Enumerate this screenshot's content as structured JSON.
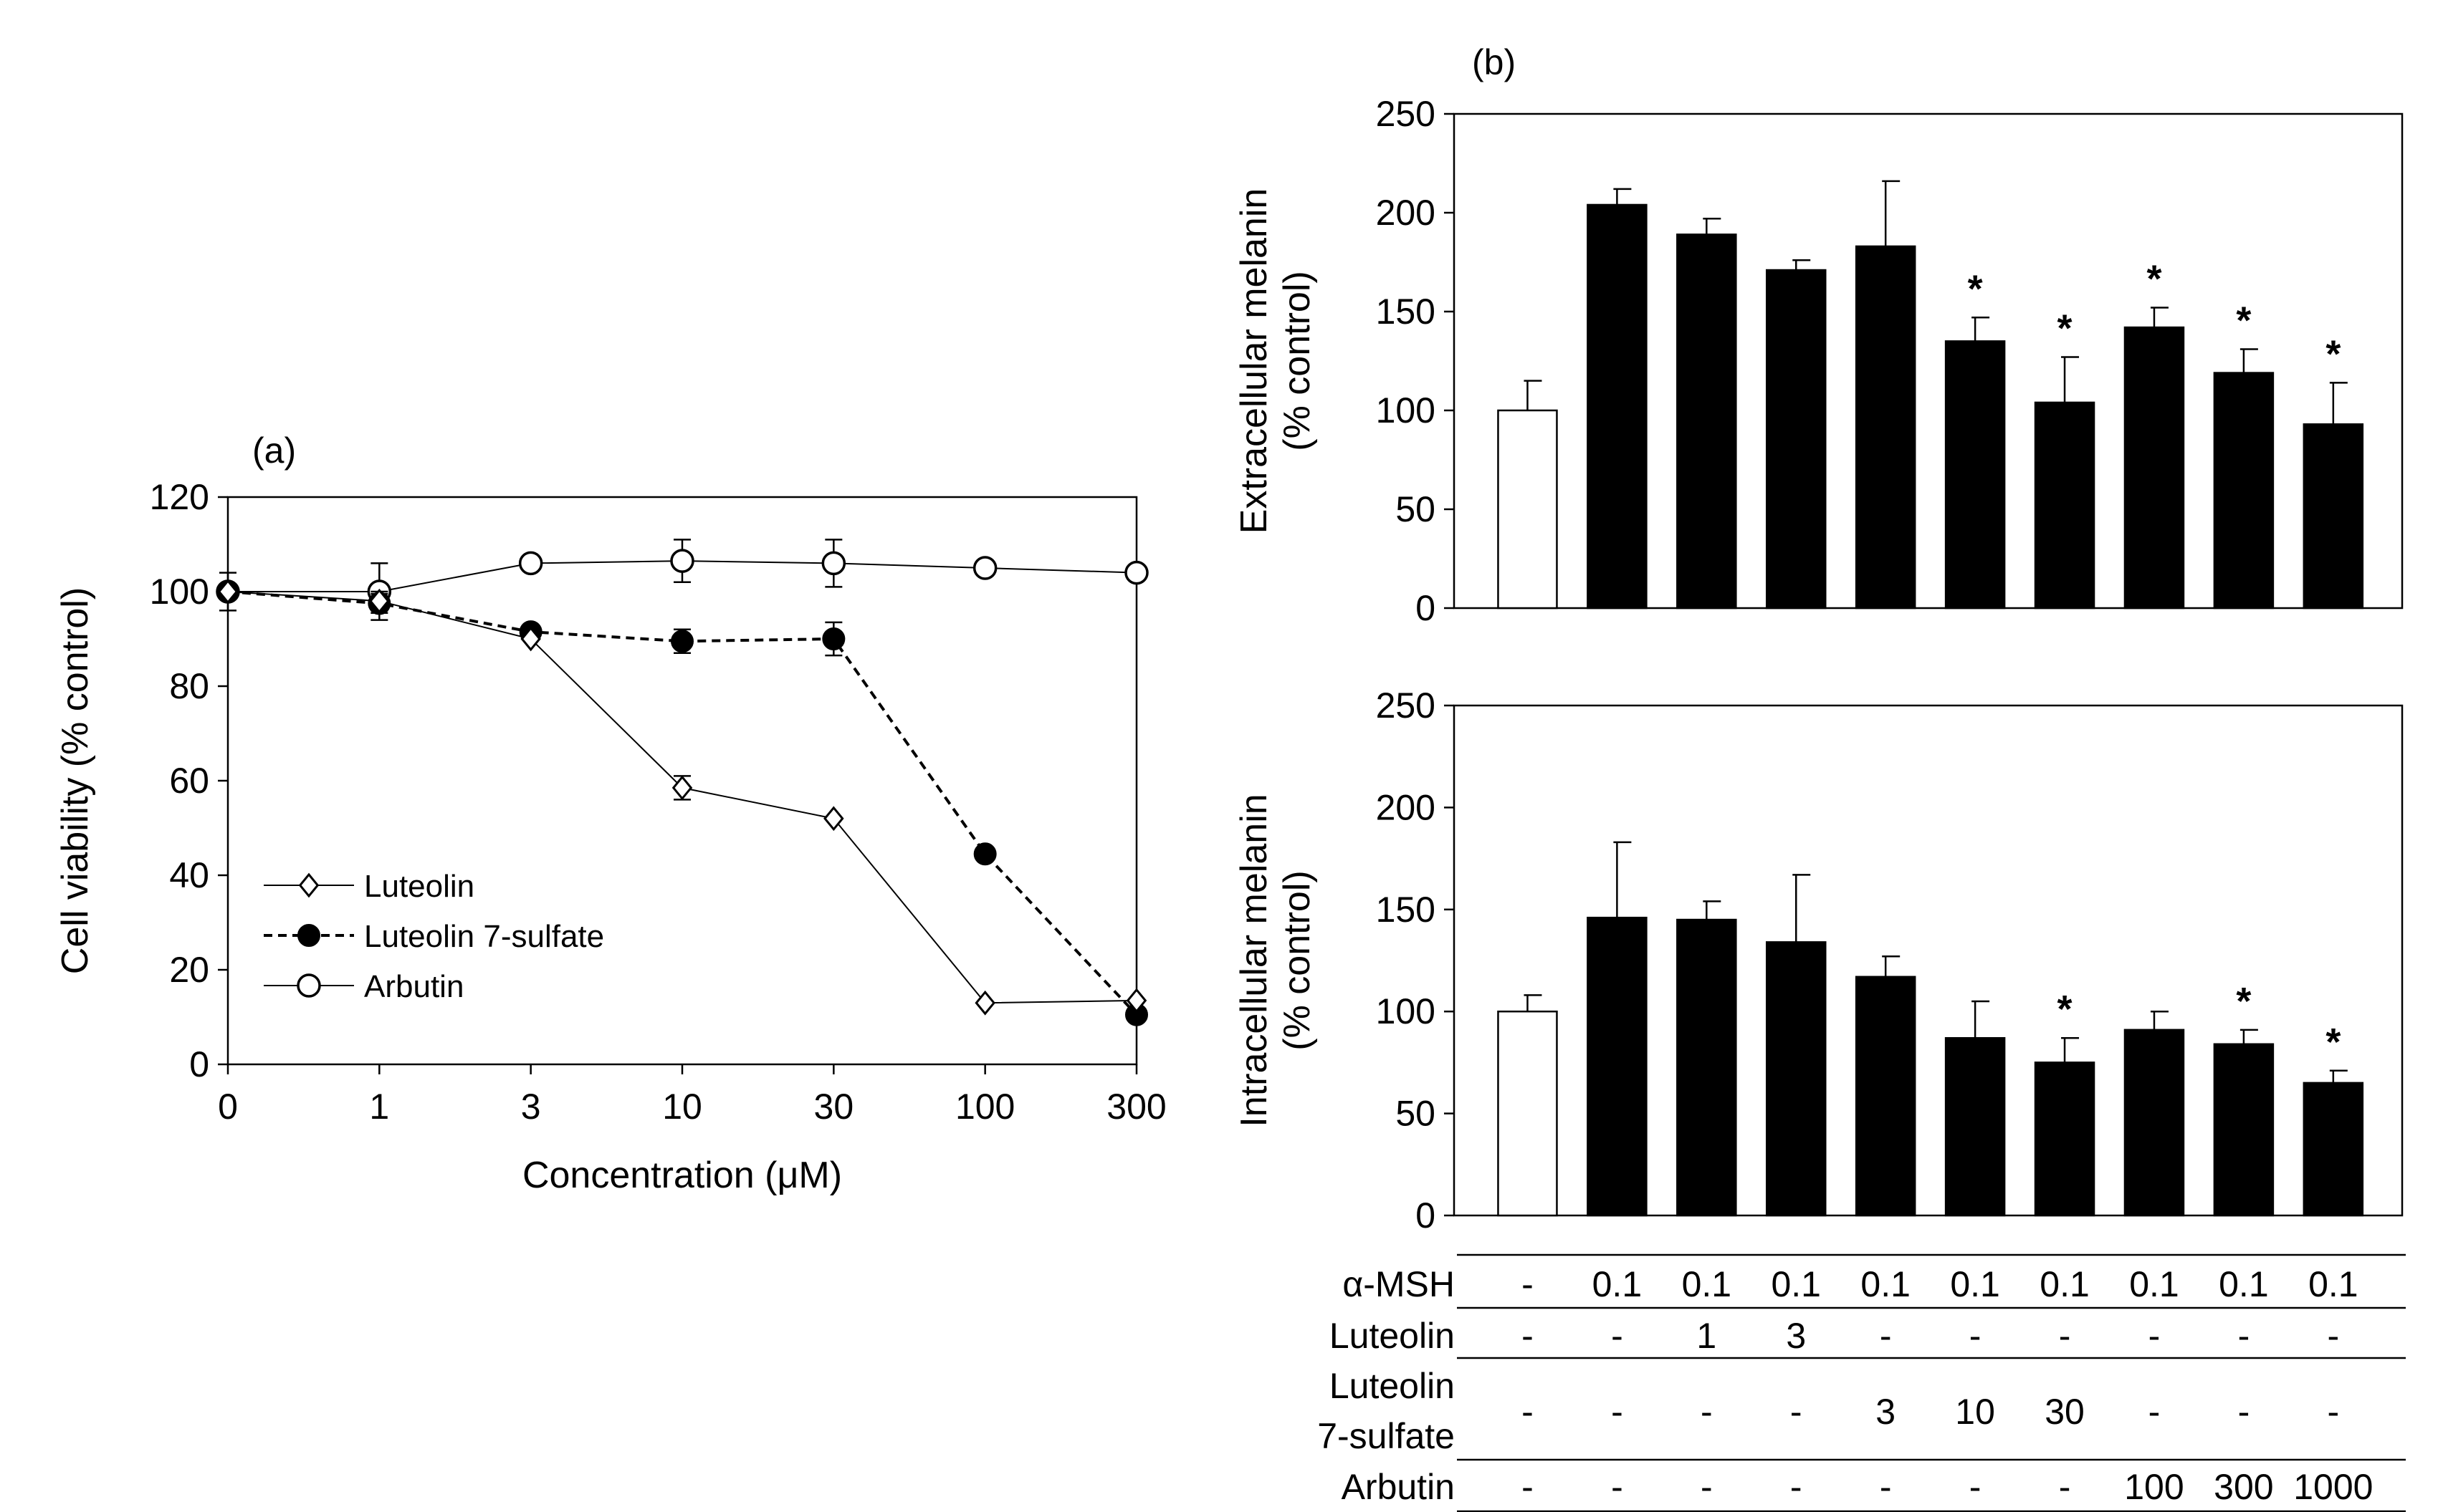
{
  "chart_data": [
    {
      "id": "a",
      "type": "line",
      "panel_label": "(a)",
      "xlabel": "Concentration (μM)",
      "ylabel": "Cell viability (% control)",
      "categories": [
        "0",
        "1",
        "3",
        "10",
        "30",
        "100",
        "300"
      ],
      "ylim": [
        0,
        120
      ],
      "yticks": [
        0,
        20,
        40,
        60,
        80,
        100,
        120
      ],
      "legend_position": "lower-left",
      "series": [
        {
          "name": "Luteolin",
          "marker": "open-diamond",
          "line": "solid",
          "values": [
            100,
            98,
            90,
            58.5,
            52,
            13,
            13.5
          ],
          "errors": [
            0,
            2,
            0,
            2.5,
            0,
            0,
            0
          ]
        },
        {
          "name": "Luteolin 7-sulfate",
          "marker": "filled-circle",
          "line": "dashed",
          "values": [
            100,
            97.5,
            91.5,
            89.5,
            90,
            44.5,
            10.5
          ],
          "errors": [
            0,
            2,
            1,
            2.5,
            3.5,
            0,
            0
          ]
        },
        {
          "name": "Arbutin",
          "marker": "open-circle",
          "line": "solid",
          "values": [
            100,
            100,
            106,
            106.5,
            106,
            105,
            104
          ],
          "errors": [
            4,
            6,
            0,
            4.5,
            5,
            0,
            0
          ]
        }
      ]
    },
    {
      "id": "b-top",
      "type": "bar",
      "panel_label": "(b)",
      "ylabel": "Extracellular melanin (% control)",
      "ylabel_lines": [
        "Extracellular melanin",
        "(% control)"
      ],
      "ylim": [
        0,
        250
      ],
      "yticks": [
        0,
        50,
        100,
        150,
        200,
        250
      ],
      "values": [
        100,
        204,
        189,
        171,
        183,
        135,
        104,
        142,
        119,
        93
      ],
      "errors": [
        15,
        8,
        8,
        5,
        33,
        12,
        23,
        10,
        12,
        21
      ],
      "significant": [
        false,
        false,
        false,
        false,
        false,
        true,
        true,
        true,
        true,
        true
      ],
      "star_label": "*",
      "fills": [
        "#ffffff",
        "#000000",
        "#000000",
        "#000000",
        "#000000",
        "#000000",
        "#000000",
        "#000000",
        "#000000",
        "#000000"
      ]
    },
    {
      "id": "b-bottom",
      "type": "bar",
      "ylabel": "Intracellular melanin (% control)",
      "ylabel_lines": [
        "Intracellular melanin",
        "(% control)"
      ],
      "ylim": [
        0,
        250
      ],
      "yticks": [
        0,
        50,
        100,
        150,
        200,
        250
      ],
      "values": [
        100,
        146,
        145,
        134,
        117,
        87,
        75,
        91,
        84,
        65
      ],
      "errors": [
        8,
        37,
        9,
        33,
        10,
        18,
        12,
        9,
        7,
        6
      ],
      "significant": [
        false,
        false,
        false,
        false,
        false,
        false,
        true,
        false,
        true,
        true
      ],
      "star_label": "*",
      "fills": [
        "#ffffff",
        "#000000",
        "#000000",
        "#000000",
        "#000000",
        "#000000",
        "#000000",
        "#000000",
        "#000000",
        "#000000"
      ]
    }
  ],
  "treatment_table": {
    "rows": [
      {
        "label": "α-MSH",
        "values": [
          "-",
          "0.1",
          "0.1",
          "0.1",
          "0.1",
          "0.1",
          "0.1",
          "0.1",
          "0.1",
          "0.1"
        ]
      },
      {
        "label": "Luteolin",
        "values": [
          "-",
          "-",
          "1",
          "3",
          "-",
          "-",
          "-",
          "-",
          "-",
          "-"
        ]
      },
      {
        "label": "Luteolin 7-sulfate",
        "label_lines": [
          "Luteolin",
          "7-sulfate"
        ],
        "values": [
          "-",
          "-",
          "-",
          "-",
          "3",
          "10",
          "30",
          "-",
          "-",
          "-"
        ]
      },
      {
        "label": "Arbutin",
        "values": [
          "-",
          "-",
          "-",
          "-",
          "-",
          "-",
          "-",
          "100",
          "300",
          "1000"
        ]
      }
    ]
  }
}
